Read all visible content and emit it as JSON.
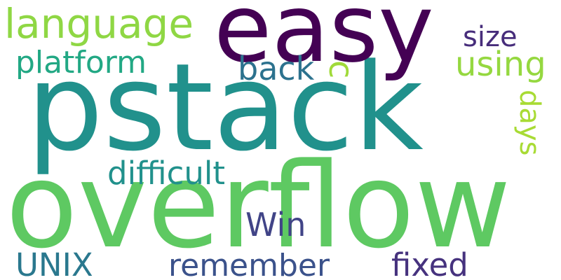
{
  "words": [
    {
      "text": "pstack",
      "color": "#21918c"
    },
    {
      "text": "overflow",
      "color": "#5ec962"
    },
    {
      "text": "easy",
      "color": "#440154"
    },
    {
      "text": "language",
      "color": "#8fd744"
    },
    {
      "text": "platform",
      "color": "#22a884"
    },
    {
      "text": "back",
      "color": "#2c728e"
    },
    {
      "text": "c",
      "color": "#a0da39"
    },
    {
      "text": "size",
      "color": "#472d7b"
    },
    {
      "text": "using",
      "color": "#95d840"
    },
    {
      "text": "days",
      "color": "#a8db34"
    },
    {
      "text": "difficult",
      "color": "#21918c"
    },
    {
      "text": "Win",
      "color": "#414487"
    },
    {
      "text": "UNIX",
      "color": "#2a788e"
    },
    {
      "text": "remember",
      "color": "#3b528b"
    },
    {
      "text": "fixed",
      "color": "#46327e"
    }
  ]
}
